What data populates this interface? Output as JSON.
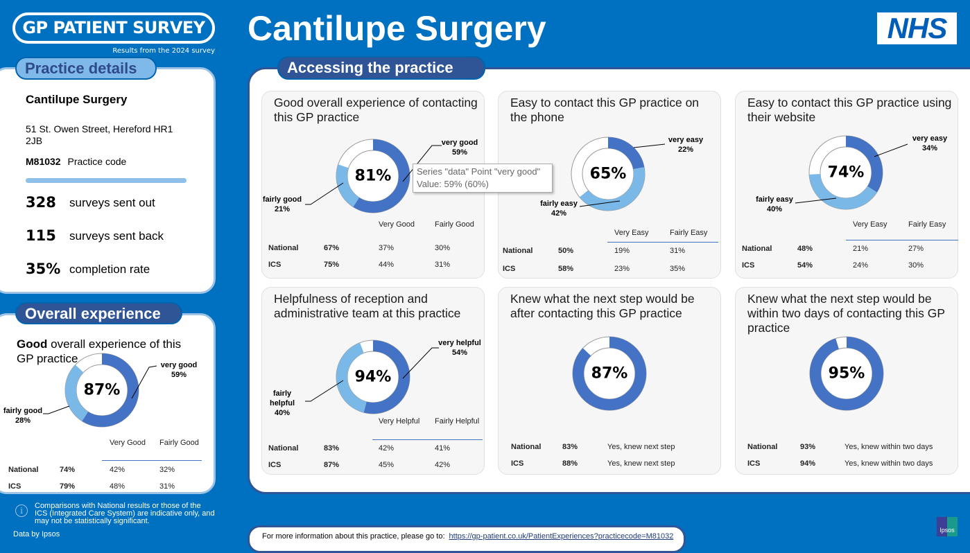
{
  "header": {
    "brand": "GP PATIENT SURVEY",
    "subtitle": "Results from the 2024 survey",
    "title": "Cantilupe Surgery",
    "nhs_logo": "NHS"
  },
  "colors": {
    "background": "#0070c0",
    "dark_segment": "#4472c4",
    "light_segment": "#7ab8e8",
    "pill_dark": "#2f5597"
  },
  "practice": {
    "heading": "Practice details",
    "name": "Cantilupe Surgery",
    "address_line1": "51 St. Owen Street, Hereford HR1",
    "address_line2": "2JB",
    "code": "M81032",
    "code_label": "Practice code",
    "stats": [
      {
        "value": "328",
        "label": "surveys sent out"
      },
      {
        "value": "115",
        "label": "surveys sent back"
      },
      {
        "value": "35%",
        "label": "completion rate"
      }
    ]
  },
  "overall": {
    "heading": "Overall experience",
    "question_bold": "Good",
    "question_rest": " overall experience of this GP practice",
    "center_value": "87%",
    "segments": [
      {
        "label": "very good",
        "value": 59,
        "text": "59%"
      },
      {
        "label": "fairly good",
        "value": 28,
        "text": "28%"
      }
    ],
    "columns": [
      "Very Good",
      "Fairly Good"
    ],
    "rows": [
      {
        "label": "National",
        "total": "74%",
        "c": [
          "42%",
          "32%"
        ]
      },
      {
        "label": "ICS",
        "total": "79%",
        "c": [
          "48%",
          "31%"
        ]
      }
    ]
  },
  "section": {
    "heading": "Accessing the practice"
  },
  "cards": [
    {
      "title": "Good overall experience of contacting this GP practice",
      "center_value": "81%",
      "segments": [
        {
          "label": "very good",
          "value": 59,
          "text": "59%"
        },
        {
          "label": "fairly good",
          "value": 21,
          "text": "21%"
        }
      ],
      "columns": [
        "Very Good",
        "Fairly Good"
      ],
      "rows": [
        {
          "label": "National",
          "total": "67%",
          "c": [
            "37%",
            "30%"
          ]
        },
        {
          "label": "ICS",
          "total": "75%",
          "c": [
            "44%",
            "31%"
          ]
        }
      ]
    },
    {
      "title": "Easy to contact this GP practice on the phone",
      "center_value": "65%",
      "segments": [
        {
          "label": "very easy",
          "value": 22,
          "text": "22%"
        },
        {
          "label": "fairly easy",
          "value": 42,
          "text": "42%"
        }
      ],
      "columns": [
        "Very Easy",
        "Fairly Easy"
      ],
      "rows": [
        {
          "label": "National",
          "total": "50%",
          "c": [
            "19%",
            "31%"
          ]
        },
        {
          "label": "ICS",
          "total": "58%",
          "c": [
            "23%",
            "35%"
          ]
        }
      ]
    },
    {
      "title": "Easy to contact this GP practice using their website",
      "center_value": "74%",
      "segments": [
        {
          "label": "very easy",
          "value": 34,
          "text": "34%"
        },
        {
          "label": "fairly easy",
          "value": 40,
          "text": "40%"
        }
      ],
      "columns": [
        "Very Easy",
        "Fairly Easy"
      ],
      "rows": [
        {
          "label": "National",
          "total": "48%",
          "c": [
            "21%",
            "27%"
          ]
        },
        {
          "label": "ICS",
          "total": "54%",
          "c": [
            "24%",
            "30%"
          ]
        }
      ]
    },
    {
      "title": "Helpfulness of reception and administrative team at this practice",
      "center_value": "94%",
      "segments": [
        {
          "label": "very helpful",
          "value": 54,
          "text": "54%"
        },
        {
          "label": "fairly helpful",
          "value": 40,
          "text": "40%"
        }
      ],
      "columns": [
        "Very Helpful",
        "Fairly Helpful"
      ],
      "rows": [
        {
          "label": "National",
          "total": "83%",
          "c": [
            "42%",
            "41%"
          ]
        },
        {
          "label": "ICS",
          "total": "87%",
          "c": [
            "45%",
            "42%"
          ]
        }
      ]
    },
    {
      "title": "Knew what the next step would be after contacting this GP practice",
      "center_value": "87%",
      "segments": [
        {
          "value": 87
        }
      ],
      "columns": [],
      "rows": [
        {
          "label": "National",
          "total": "83%",
          "c": [
            "Yes, knew next step"
          ]
        },
        {
          "label": "ICS",
          "total": "88%",
          "c": [
            "Yes, knew next step"
          ]
        }
      ]
    },
    {
      "title": "Knew what the next step would be within two days of contacting this GP practice",
      "center_value": "95%",
      "segments": [
        {
          "value": 95
        }
      ],
      "columns": [],
      "rows": [
        {
          "label": "National",
          "total": "93%",
          "c": [
            "Yes, knew within two days"
          ]
        },
        {
          "label": "ICS",
          "total": "94%",
          "c": [
            "Yes, knew within two days"
          ]
        }
      ]
    }
  ],
  "tooltip": {
    "line1": "Series \"data\" Point \"very good\"",
    "line2": "Value: 59% (60%)"
  },
  "footnote": {
    "info_icon": "info-icon",
    "text": "Comparisons with National results or those of the ICS (Integrated Care System) are indicative only, and may not be statistically significant.",
    "data_by": "Data by Ipsos",
    "ipsos_logo": "Ipsos"
  },
  "footer": {
    "text": "For more information about this practice, please go to:",
    "link": "https://gp-patient.co.uk/PatientExperiences?practicecode=M81032"
  }
}
